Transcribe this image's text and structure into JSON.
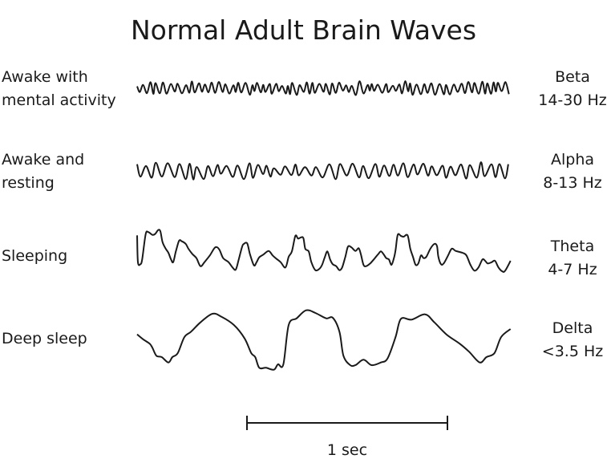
{
  "title": "Normal Adult Brain Waves",
  "rows": [
    {
      "state_line1": "Awake with",
      "state_line2": "mental activity",
      "wave": "Beta",
      "freq": "14-30 Hz"
    },
    {
      "state_line1": "Awake and",
      "state_line2": "resting",
      "wave": "Alpha",
      "freq": "8-13 Hz"
    },
    {
      "state_line1": "Sleeping",
      "state_line2": "",
      "wave": "Theta",
      "freq": "4-7 Hz"
    },
    {
      "state_line1": "Deep sleep",
      "state_line2": "",
      "wave": "Delta",
      "freq": "<3.5 Hz"
    }
  ],
  "scale_bar": {
    "label": "1 sec"
  },
  "colors": {
    "line": "#1a1a1a"
  }
}
